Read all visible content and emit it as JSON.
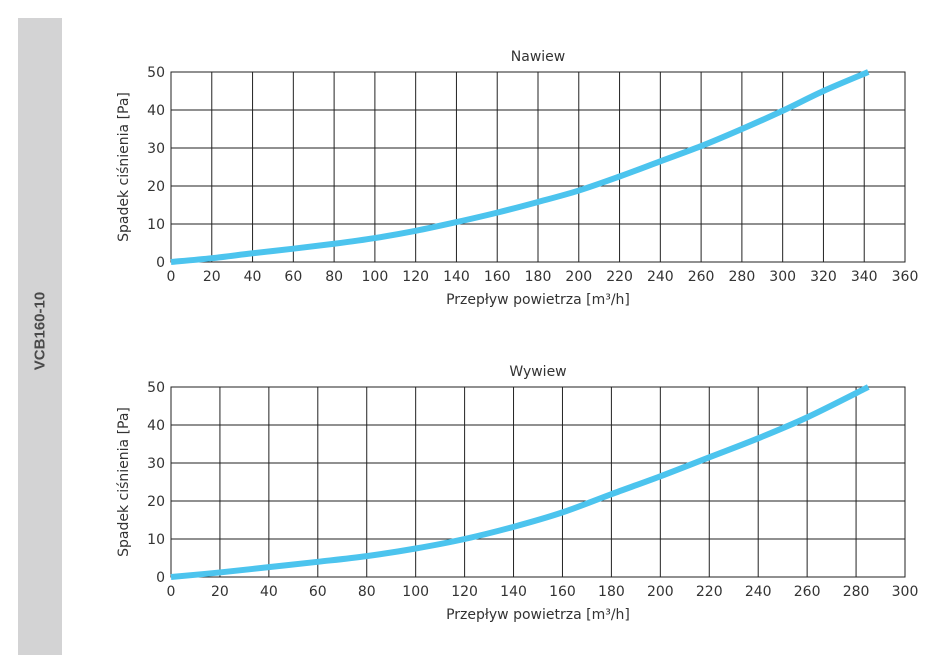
{
  "sidebar": {
    "label": "VCB160-10"
  },
  "line_color": "#4cc4ee",
  "chart_data": [
    {
      "type": "line",
      "title": "Nawiew",
      "xlabel": "Przepływ powietrza [m³/h]",
      "ylabel": "Spadek ciśnienia [Pa]",
      "xlim": [
        0,
        360
      ],
      "ylim": [
        0,
        50
      ],
      "xticks": [
        0,
        20,
        40,
        60,
        80,
        100,
        120,
        140,
        160,
        180,
        200,
        220,
        240,
        260,
        280,
        300,
        320,
        340,
        360
      ],
      "yticks": [
        0,
        10,
        20,
        30,
        40,
        50
      ],
      "grid": true,
      "series": [
        {
          "name": "Nawiew",
          "x": [
            0,
            20,
            40,
            60,
            80,
            100,
            120,
            140,
            160,
            180,
            200,
            220,
            240,
            260,
            280,
            300,
            320,
            342
          ],
          "y": [
            0,
            1,
            2.3,
            3.5,
            4.8,
            6.3,
            8.2,
            10.5,
            13,
            15.8,
            18.8,
            22.5,
            26.5,
            30.5,
            35,
            39.8,
            45,
            50
          ]
        }
      ]
    },
    {
      "type": "line",
      "title": "Wywiew",
      "xlabel": "Przepływ powietrza [m³/h]",
      "ylabel": "Spadek ciśnienia [Pa]",
      "xlim": [
        0,
        300
      ],
      "ylim": [
        0,
        50
      ],
      "xticks": [
        0,
        20,
        40,
        60,
        80,
        100,
        120,
        140,
        160,
        180,
        200,
        220,
        240,
        260,
        280,
        300
      ],
      "yticks": [
        0,
        10,
        20,
        30,
        40,
        50
      ],
      "grid": true,
      "series": [
        {
          "name": "Wywiew",
          "x": [
            0,
            20,
            40,
            60,
            80,
            100,
            120,
            140,
            160,
            180,
            200,
            220,
            240,
            260,
            285
          ],
          "y": [
            0,
            1.2,
            2.6,
            4,
            5.5,
            7.5,
            10,
            13.2,
            17,
            21.8,
            26.5,
            31.5,
            36.5,
            42,
            50
          ]
        }
      ]
    }
  ]
}
